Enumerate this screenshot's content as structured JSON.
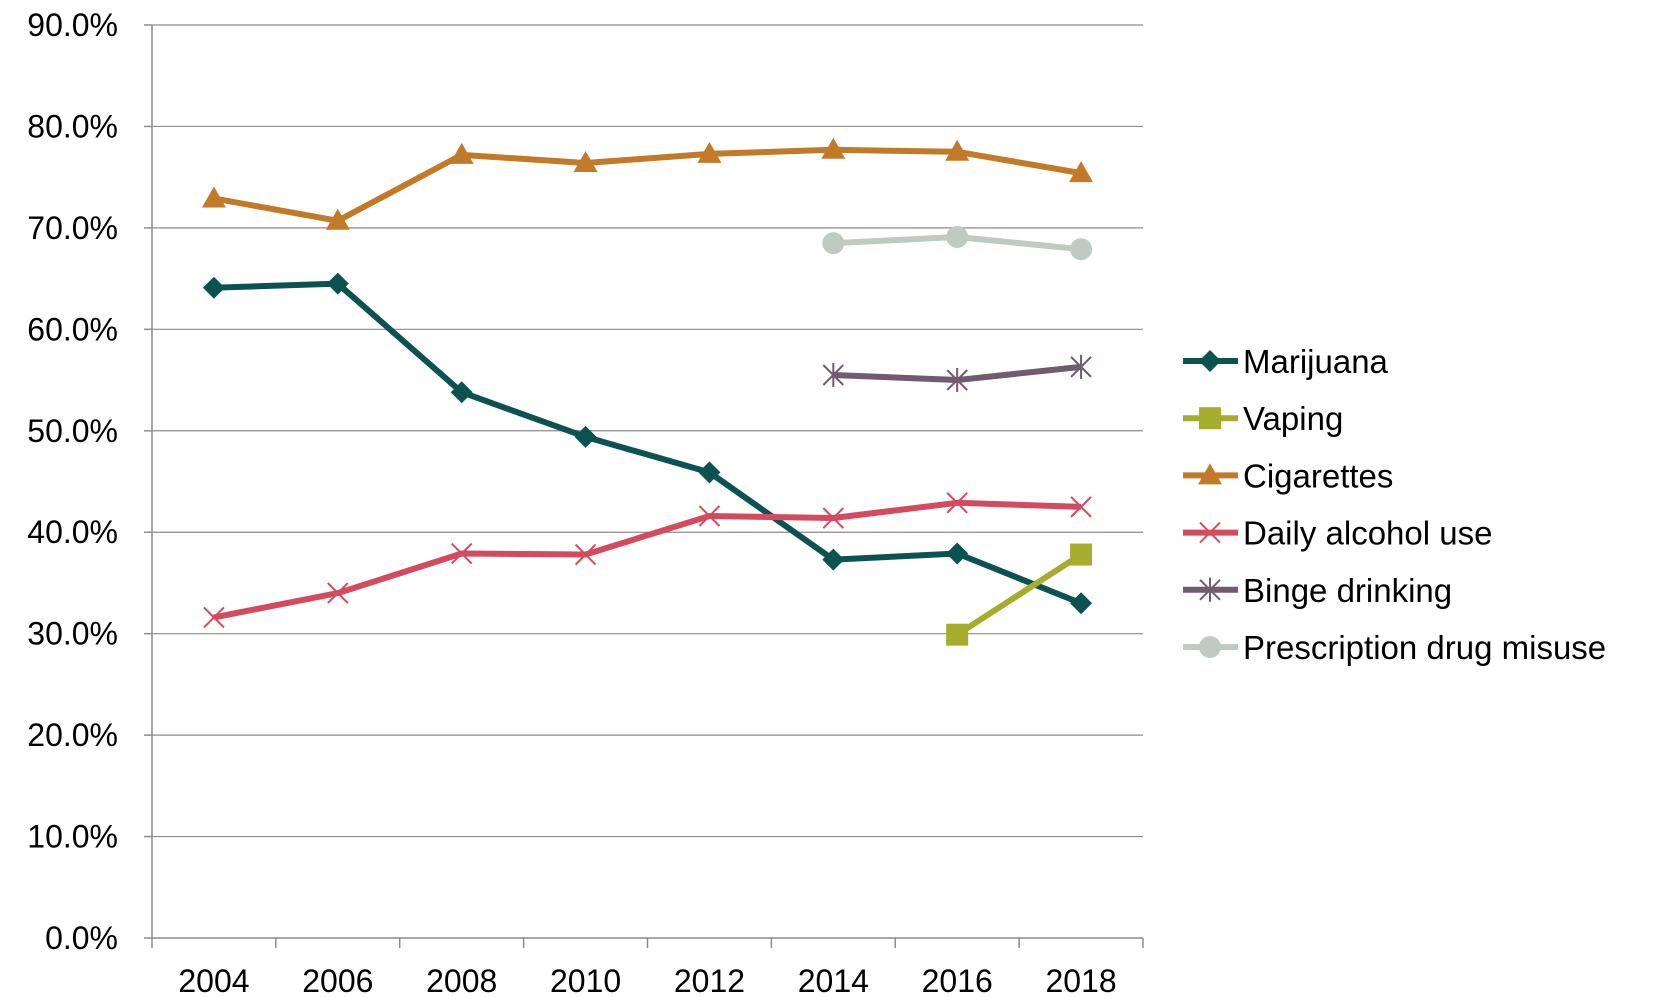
{
  "chart_data": {
    "type": "line",
    "title": "",
    "xlabel": "",
    "ylabel": "",
    "categories": [
      "2004",
      "2006",
      "2008",
      "2010",
      "2012",
      "2014",
      "2016",
      "2018"
    ],
    "y_ticks": [
      "0.0%",
      "10.0%",
      "20.0%",
      "30.0%",
      "40.0%",
      "50.0%",
      "60.0%",
      "70.0%",
      "80.0%",
      "90.0%"
    ],
    "ylim": [
      0,
      90
    ],
    "grid": "horizontal",
    "legend_position": "right",
    "series": [
      {
        "name": "Marijuana",
        "color": "#0b5350",
        "marker": "diamond",
        "values": [
          64.1,
          64.5,
          53.8,
          49.4,
          45.9,
          37.3,
          37.9,
          33.0
        ]
      },
      {
        "name": "Vaping",
        "color": "#a6ad2d",
        "marker": "square",
        "values": [
          null,
          null,
          null,
          null,
          null,
          null,
          29.9,
          37.8
        ]
      },
      {
        "name": "Cigarettes",
        "color": "#c27a28",
        "marker": "triangle",
        "values": [
          72.9,
          70.7,
          77.2,
          76.4,
          77.3,
          77.7,
          77.5,
          75.4
        ]
      },
      {
        "name": "Daily alcohol use",
        "color": "#d44a5e",
        "marker": "x",
        "values": [
          31.6,
          34.0,
          37.9,
          37.8,
          41.6,
          41.4,
          42.9,
          42.5
        ]
      },
      {
        "name": "Binge drinking",
        "color": "#725a70",
        "marker": "star",
        "values": [
          null,
          null,
          null,
          null,
          null,
          55.5,
          55.0,
          56.3
        ]
      },
      {
        "name": "Prescription drug misuse",
        "color": "#bfcbc2",
        "marker": "circle",
        "values": [
          null,
          null,
          null,
          null,
          null,
          68.5,
          69.1,
          67.9
        ]
      }
    ]
  }
}
